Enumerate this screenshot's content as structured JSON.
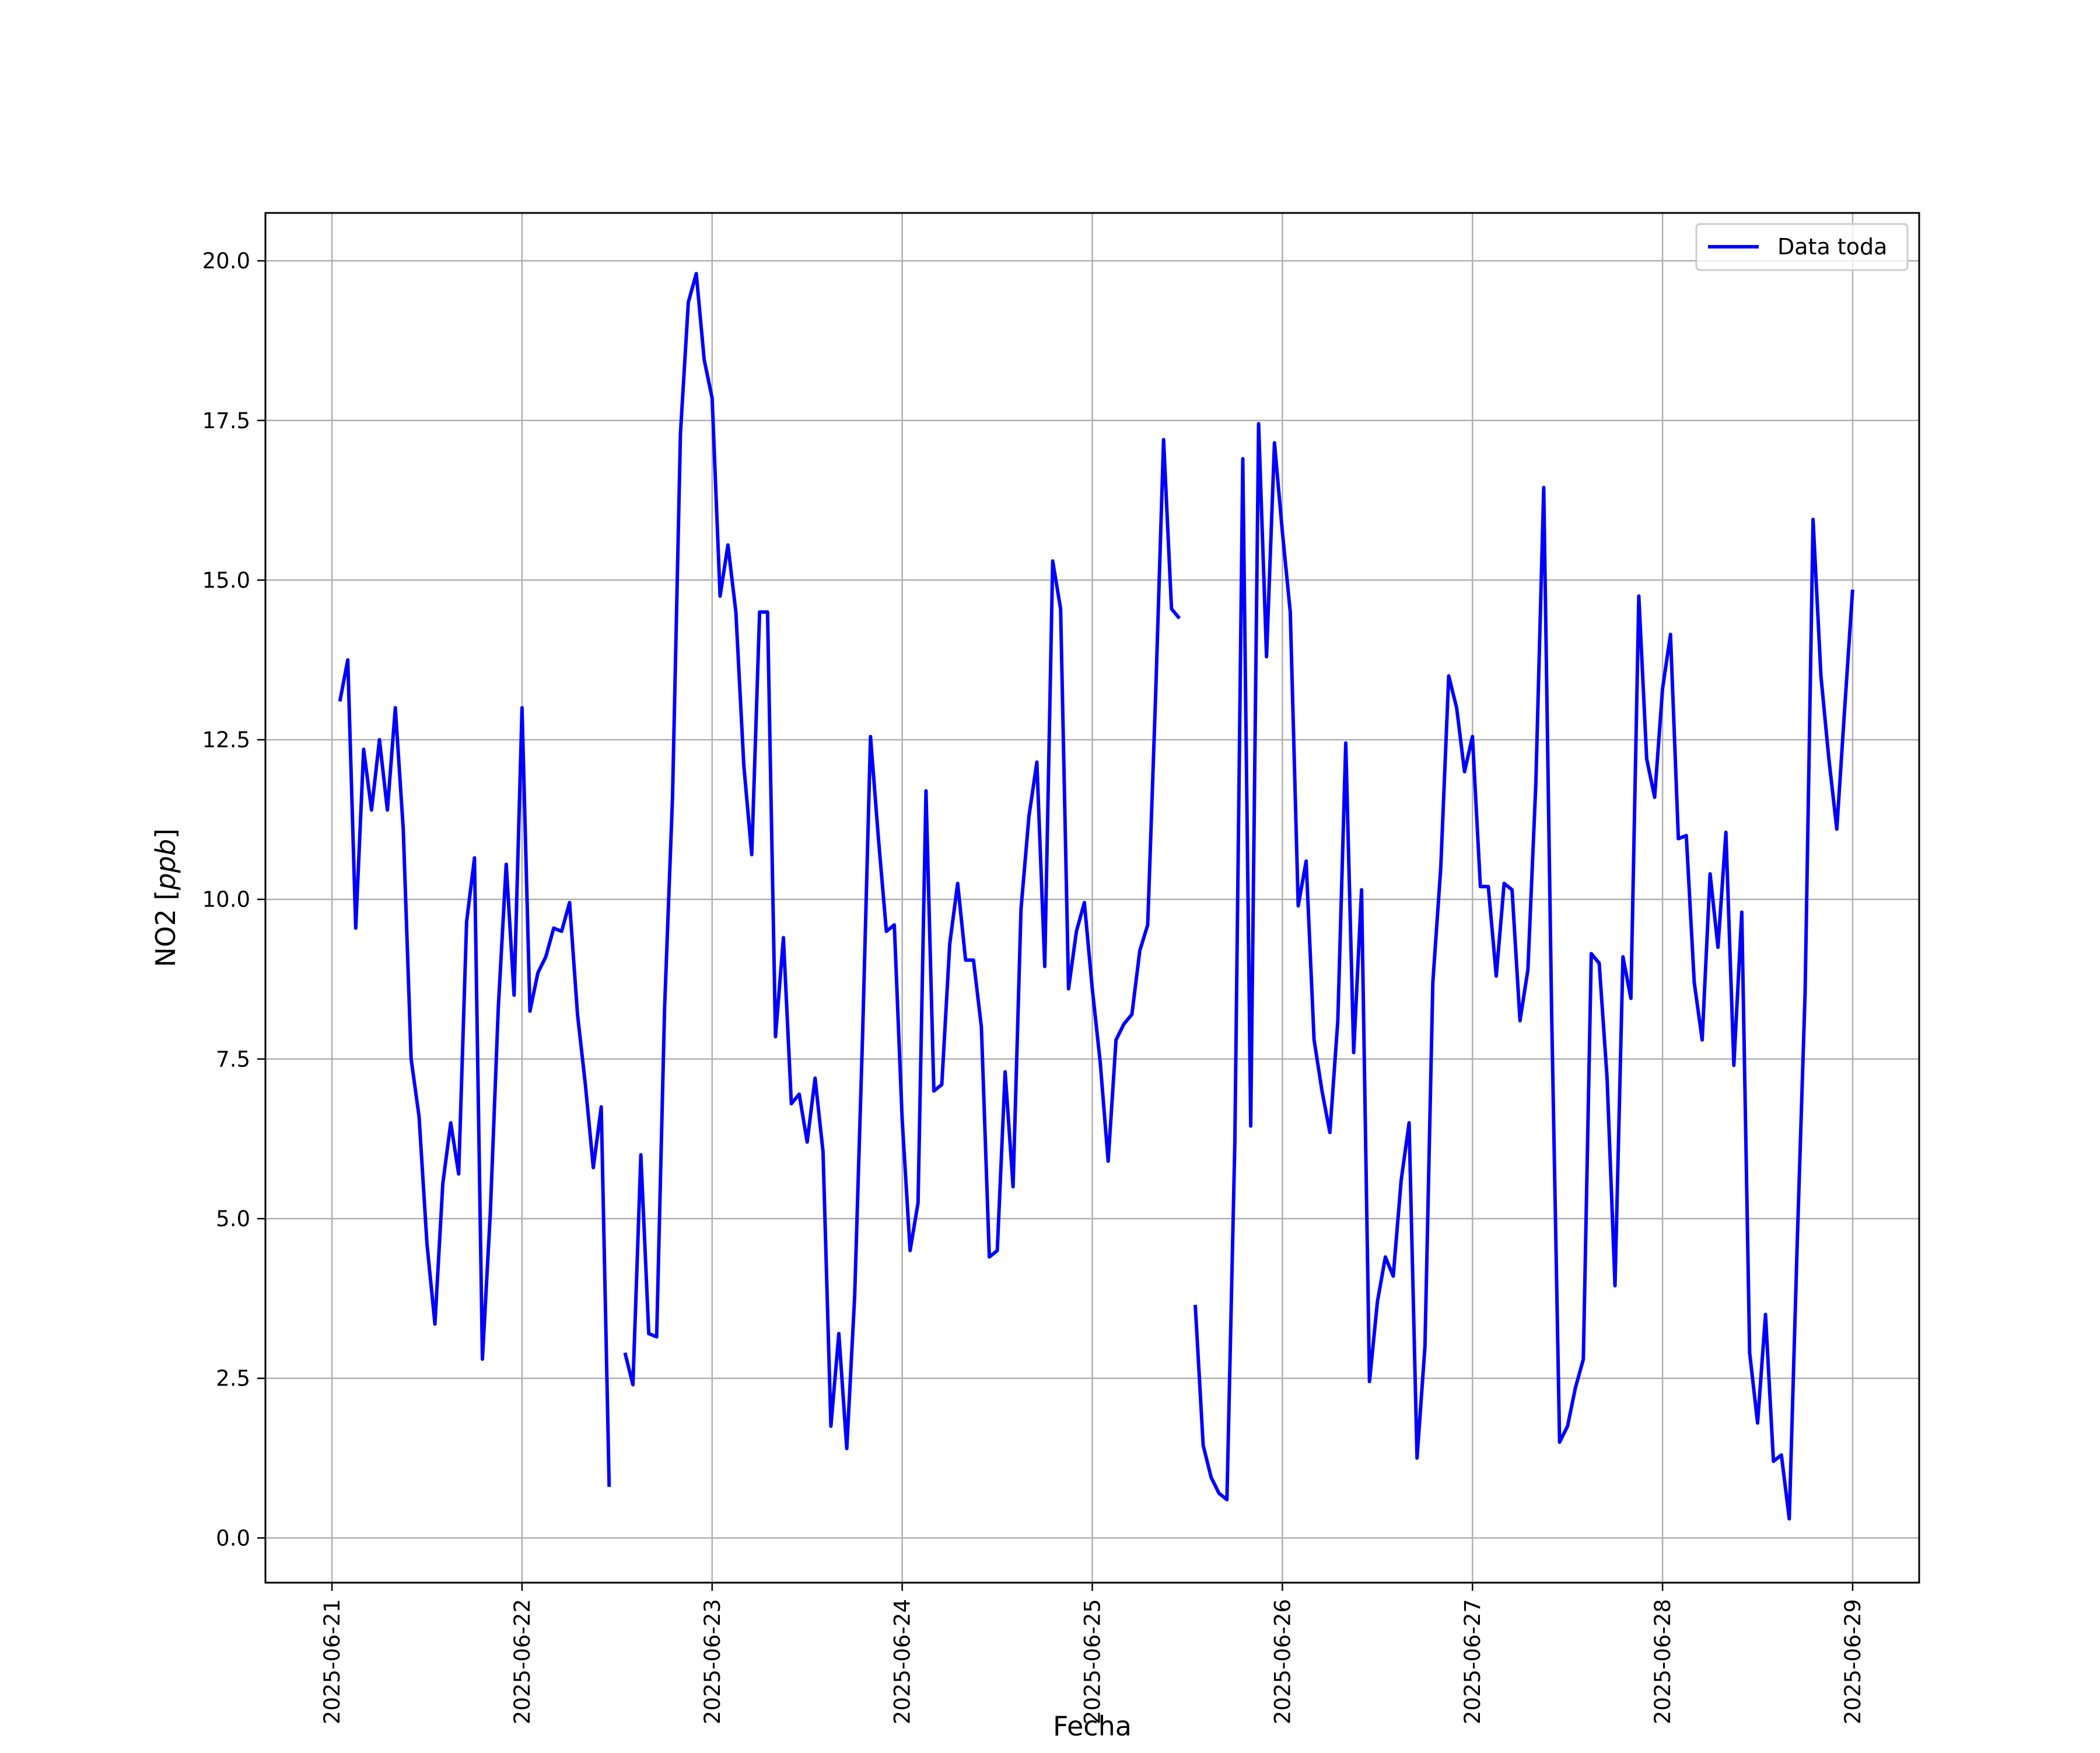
{
  "chart_data": {
    "type": "line",
    "title": "",
    "xlabel": "Fecha",
    "ylabel": "NO2 [ppb]",
    "ylabel_parts": {
      "prefix": "NO2 [",
      "unit": "ppb",
      "suffix": "]"
    },
    "xlim": [
      "2025-06-20T15:36",
      "2025-06-29T08:24"
    ],
    "ylim": [
      -0.7,
      20.75
    ],
    "grid": true,
    "legend_position": "top-right",
    "x_ticks": [
      "2025-06-21",
      "2025-06-22",
      "2025-06-23",
      "2025-06-24",
      "2025-06-25",
      "2025-06-26",
      "2025-06-27",
      "2025-06-28",
      "2025-06-29"
    ],
    "y_ticks": [
      0.0,
      2.5,
      5.0,
      7.5,
      10.0,
      12.5,
      15.0,
      17.5,
      20.0
    ],
    "y_tick_labels": [
      "0.0",
      "2.5",
      "5.0",
      "7.5",
      "10.0",
      "12.5",
      "15.0",
      "17.5",
      "20.0"
    ],
    "series": [
      {
        "name": "Data toda",
        "color": "#0000ff",
        "points": [
          [
            "2025-06-21T01:00",
            13.1
          ],
          [
            "2025-06-21T02:00",
            13.75
          ],
          [
            "2025-06-21T03:00",
            9.55
          ],
          [
            "2025-06-21T04:00",
            12.35
          ],
          [
            "2025-06-21T05:00",
            11.4
          ],
          [
            "2025-06-21T06:00",
            12.5
          ],
          [
            "2025-06-21T07:00",
            11.4
          ],
          [
            "2025-06-21T08:00",
            13.0
          ],
          [
            "2025-06-21T09:00",
            11.1
          ],
          [
            "2025-06-21T10:00",
            7.5
          ],
          [
            "2025-06-21T11:00",
            6.6
          ],
          [
            "2025-06-21T12:00",
            4.6
          ],
          [
            "2025-06-21T13:00",
            3.35
          ],
          [
            "2025-06-21T14:00",
            5.55
          ],
          [
            "2025-06-21T15:00",
            6.5
          ],
          [
            "2025-06-21T16:00",
            5.7
          ],
          [
            "2025-06-21T17:00",
            9.65
          ],
          [
            "2025-06-21T18:00",
            10.65
          ],
          [
            "2025-06-21T19:00",
            2.8
          ],
          [
            "2025-06-21T20:00",
            5.1
          ],
          [
            "2025-06-21T21:00",
            8.3
          ],
          [
            "2025-06-21T22:00",
            10.55
          ],
          [
            "2025-06-21T23:00",
            8.5
          ],
          [
            "2025-06-22T00:00",
            13.0
          ],
          [
            "2025-06-22T01:00",
            8.25
          ],
          [
            "2025-06-22T02:00",
            8.85
          ],
          [
            "2025-06-22T03:00",
            9.1
          ],
          [
            "2025-06-22T04:00",
            9.55
          ],
          [
            "2025-06-22T05:00",
            9.5
          ],
          [
            "2025-06-22T06:00",
            9.95
          ],
          [
            "2025-06-22T07:00",
            8.2
          ],
          [
            "2025-06-22T08:00",
            7.1
          ],
          [
            "2025-06-22T09:00",
            5.8
          ],
          [
            "2025-06-22T10:00",
            6.75
          ],
          [
            "2025-06-22T11:00",
            0.8
          ],
          [
            "2025-06-22T12:00",
            null
          ],
          [
            "2025-06-22T13:00",
            2.9
          ],
          [
            "2025-06-22T14:00",
            2.4
          ],
          [
            "2025-06-22T15:00",
            6.0
          ],
          [
            "2025-06-22T16:00",
            3.2
          ],
          [
            "2025-06-22T17:00",
            3.15
          ],
          [
            "2025-06-22T18:00",
            8.3
          ],
          [
            "2025-06-22T19:00",
            11.6
          ],
          [
            "2025-06-22T20:00",
            17.3
          ],
          [
            "2025-06-22T21:00",
            19.35
          ],
          [
            "2025-06-22T22:00",
            19.8
          ],
          [
            "2025-06-22T23:00",
            18.45
          ],
          [
            "2025-06-23T00:00",
            17.85
          ],
          [
            "2025-06-23T01:00",
            14.75
          ],
          [
            "2025-06-23T02:00",
            15.55
          ],
          [
            "2025-06-23T03:00",
            14.5
          ],
          [
            "2025-06-23T04:00",
            12.1
          ],
          [
            "2025-06-23T05:00",
            10.7
          ],
          [
            "2025-06-23T06:00",
            14.5
          ],
          [
            "2025-06-23T07:00",
            14.5
          ],
          [
            "2025-06-23T08:00",
            7.85
          ],
          [
            "2025-06-23T09:00",
            9.4
          ],
          [
            "2025-06-23T10:00",
            6.8
          ],
          [
            "2025-06-23T11:00",
            6.95
          ],
          [
            "2025-06-23T12:00",
            6.2
          ],
          [
            "2025-06-23T13:00",
            7.2
          ],
          [
            "2025-06-23T14:00",
            6.05
          ],
          [
            "2025-06-23T15:00",
            1.75
          ],
          [
            "2025-06-23T16:00",
            3.2
          ],
          [
            "2025-06-23T17:00",
            1.4
          ],
          [
            "2025-06-23T18:00",
            3.8
          ],
          [
            "2025-06-23T19:00",
            7.9
          ],
          [
            "2025-06-23T20:00",
            12.55
          ],
          [
            "2025-06-23T21:00",
            10.95
          ],
          [
            "2025-06-23T22:00",
            9.5
          ],
          [
            "2025-06-23T23:00",
            9.6
          ],
          [
            "2025-06-24T00:00",
            6.55
          ],
          [
            "2025-06-24T01:00",
            4.5
          ],
          [
            "2025-06-24T02:00",
            5.25
          ],
          [
            "2025-06-24T03:00",
            11.7
          ],
          [
            "2025-06-24T04:00",
            7.0
          ],
          [
            "2025-06-24T05:00",
            7.1
          ],
          [
            "2025-06-24T06:00",
            9.3
          ],
          [
            "2025-06-24T07:00",
            10.25
          ],
          [
            "2025-06-24T08:00",
            9.05
          ],
          [
            "2025-06-24T09:00",
            9.05
          ],
          [
            "2025-06-24T10:00",
            8.0
          ],
          [
            "2025-06-24T11:00",
            4.4
          ],
          [
            "2025-06-24T12:00",
            4.5
          ],
          [
            "2025-06-24T13:00",
            7.3
          ],
          [
            "2025-06-24T14:00",
            5.5
          ],
          [
            "2025-06-24T15:00",
            9.85
          ],
          [
            "2025-06-24T16:00",
            11.3
          ],
          [
            "2025-06-24T17:00",
            12.15
          ],
          [
            "2025-06-24T18:00",
            8.95
          ],
          [
            "2025-06-24T19:00",
            15.3
          ],
          [
            "2025-06-24T20:00",
            14.55
          ],
          [
            "2025-06-24T21:00",
            8.6
          ],
          [
            "2025-06-24T22:00",
            9.5
          ],
          [
            "2025-06-24T23:00",
            9.95
          ],
          [
            "2025-06-25T00:00",
            8.6
          ],
          [
            "2025-06-25T01:00",
            7.45
          ],
          [
            "2025-06-25T02:00",
            5.9
          ],
          [
            "2025-06-25T03:00",
            7.8
          ],
          [
            "2025-06-25T04:00",
            8.05
          ],
          [
            "2025-06-25T05:00",
            8.2
          ],
          [
            "2025-06-25T06:00",
            9.2
          ],
          [
            "2025-06-25T07:00",
            9.6
          ],
          [
            "2025-06-25T08:00",
            13.2
          ],
          [
            "2025-06-25T09:00",
            17.2
          ],
          [
            "2025-06-25T10:00",
            14.55
          ],
          [
            "2025-06-25T11:00",
            14.4
          ],
          [
            "2025-06-25T12:00",
            null
          ],
          [
            "2025-06-25T13:00",
            3.65
          ],
          [
            "2025-06-25T14:00",
            1.45
          ],
          [
            "2025-06-25T15:00",
            0.95
          ],
          [
            "2025-06-25T16:00",
            0.7
          ],
          [
            "2025-06-25T17:00",
            0.6
          ],
          [
            "2025-06-25T18:00",
            6.2
          ],
          [
            "2025-06-25T19:00",
            16.9
          ],
          [
            "2025-06-25T20:00",
            6.45
          ],
          [
            "2025-06-25T21:00",
            17.45
          ],
          [
            "2025-06-25T22:00",
            13.8
          ],
          [
            "2025-06-25T23:00",
            17.15
          ],
          [
            "2025-06-26T00:00",
            15.75
          ],
          [
            "2025-06-26T01:00",
            14.5
          ],
          [
            "2025-06-26T02:00",
            9.9
          ],
          [
            "2025-06-26T03:00",
            10.6
          ],
          [
            "2025-06-26T04:00",
            7.8
          ],
          [
            "2025-06-26T05:00",
            7.0
          ],
          [
            "2025-06-26T06:00",
            6.35
          ],
          [
            "2025-06-26T07:00",
            8.1
          ],
          [
            "2025-06-26T08:00",
            12.45
          ],
          [
            "2025-06-26T09:00",
            7.6
          ],
          [
            "2025-06-26T10:00",
            10.15
          ],
          [
            "2025-06-26T11:00",
            2.45
          ],
          [
            "2025-06-26T12:00",
            3.7
          ],
          [
            "2025-06-26T13:00",
            4.4
          ],
          [
            "2025-06-26T14:00",
            4.1
          ],
          [
            "2025-06-26T15:00",
            5.6
          ],
          [
            "2025-06-26T16:00",
            6.5
          ],
          [
            "2025-06-26T17:00",
            1.25
          ],
          [
            "2025-06-26T18:00",
            3.0
          ],
          [
            "2025-06-26T19:00",
            8.7
          ],
          [
            "2025-06-26T20:00",
            10.5
          ],
          [
            "2025-06-26T21:00",
            13.5
          ],
          [
            "2025-06-26T22:00",
            13.0
          ],
          [
            "2025-06-26T23:00",
            12.0
          ],
          [
            "2025-06-27T00:00",
            12.55
          ],
          [
            "2025-06-27T01:00",
            10.2
          ],
          [
            "2025-06-27T02:00",
            10.2
          ],
          [
            "2025-06-27T03:00",
            8.8
          ],
          [
            "2025-06-27T04:00",
            10.25
          ],
          [
            "2025-06-27T05:00",
            10.15
          ],
          [
            "2025-06-27T06:00",
            8.1
          ],
          [
            "2025-06-27T07:00",
            8.9
          ],
          [
            "2025-06-27T08:00",
            11.8
          ],
          [
            "2025-06-27T09:00",
            16.45
          ],
          [
            "2025-06-27T10:00",
            8.2
          ],
          [
            "2025-06-27T11:00",
            1.5
          ],
          [
            "2025-06-27T12:00",
            1.75
          ],
          [
            "2025-06-27T13:00",
            2.35
          ],
          [
            "2025-06-27T14:00",
            2.8
          ],
          [
            "2025-06-27T15:00",
            9.15
          ],
          [
            "2025-06-27T16:00",
            9.0
          ],
          [
            "2025-06-27T17:00",
            7.2
          ],
          [
            "2025-06-27T18:00",
            3.95
          ],
          [
            "2025-06-27T19:00",
            9.1
          ],
          [
            "2025-06-27T20:00",
            8.45
          ],
          [
            "2025-06-27T21:00",
            14.75
          ],
          [
            "2025-06-27T22:00",
            12.2
          ],
          [
            "2025-06-27T23:00",
            11.6
          ],
          [
            "2025-06-28T00:00",
            13.3
          ],
          [
            "2025-06-28T01:00",
            14.15
          ],
          [
            "2025-06-28T02:00",
            10.95
          ],
          [
            "2025-06-28T03:00",
            11.0
          ],
          [
            "2025-06-28T04:00",
            8.7
          ],
          [
            "2025-06-28T05:00",
            7.8
          ],
          [
            "2025-06-28T06:00",
            10.4
          ],
          [
            "2025-06-28T07:00",
            9.25
          ],
          [
            "2025-06-28T08:00",
            11.05
          ],
          [
            "2025-06-28T09:00",
            7.4
          ],
          [
            "2025-06-28T10:00",
            9.8
          ],
          [
            "2025-06-28T11:00",
            2.9
          ],
          [
            "2025-06-28T12:00",
            1.8
          ],
          [
            "2025-06-28T13:00",
            3.5
          ],
          [
            "2025-06-28T14:00",
            1.2
          ],
          [
            "2025-06-28T15:00",
            1.3
          ],
          [
            "2025-06-28T16:00",
            0.3
          ],
          [
            "2025-06-28T17:00",
            4.6
          ],
          [
            "2025-06-28T18:00",
            8.55
          ],
          [
            "2025-06-28T19:00",
            15.95
          ],
          [
            "2025-06-28T20:00",
            13.5
          ],
          [
            "2025-06-28T21:00",
            12.2
          ],
          [
            "2025-06-28T22:00",
            11.1
          ],
          [
            "2025-06-28T23:00",
            13.0
          ],
          [
            "2025-06-29T00:00",
            14.85
          ]
        ]
      }
    ]
  }
}
